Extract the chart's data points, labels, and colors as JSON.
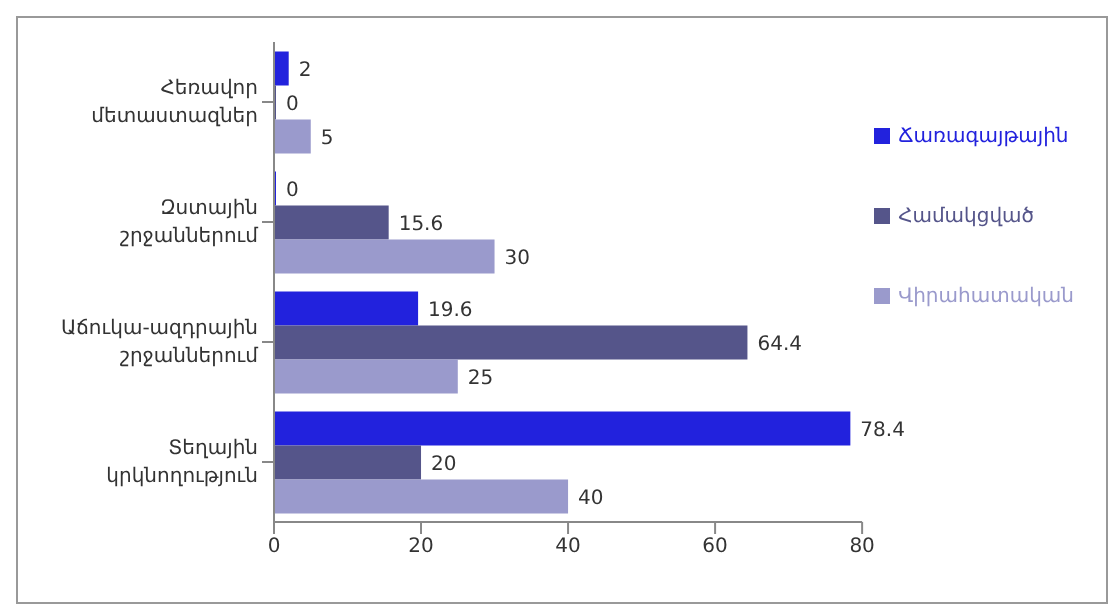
{
  "chart_data": {
    "type": "bar",
    "orientation": "horizontal",
    "categories": [
      "Հեռավոր մետաստազներ",
      "Զստային շրջաններում",
      "Աճուկա-ազդրային շրջաններում",
      "Տեղային կրկնողություն"
    ],
    "series": [
      {
        "name": "Ճառագայթային",
        "color": "#2222dd",
        "values": [
          2,
          0,
          19.6,
          78.4
        ]
      },
      {
        "name": "Համակցված",
        "color": "#55558a",
        "values": [
          0,
          15.6,
          64.4,
          20
        ]
      },
      {
        "name": "Վիրահատական",
        "color": "#9a9acc",
        "values": [
          5,
          30,
          25,
          40
        ]
      }
    ],
    "xlim": [
      0,
      80
    ],
    "xticks": [
      0,
      20,
      40,
      60,
      80
    ],
    "data_labels": true,
    "legend": "right",
    "grid": false
  }
}
